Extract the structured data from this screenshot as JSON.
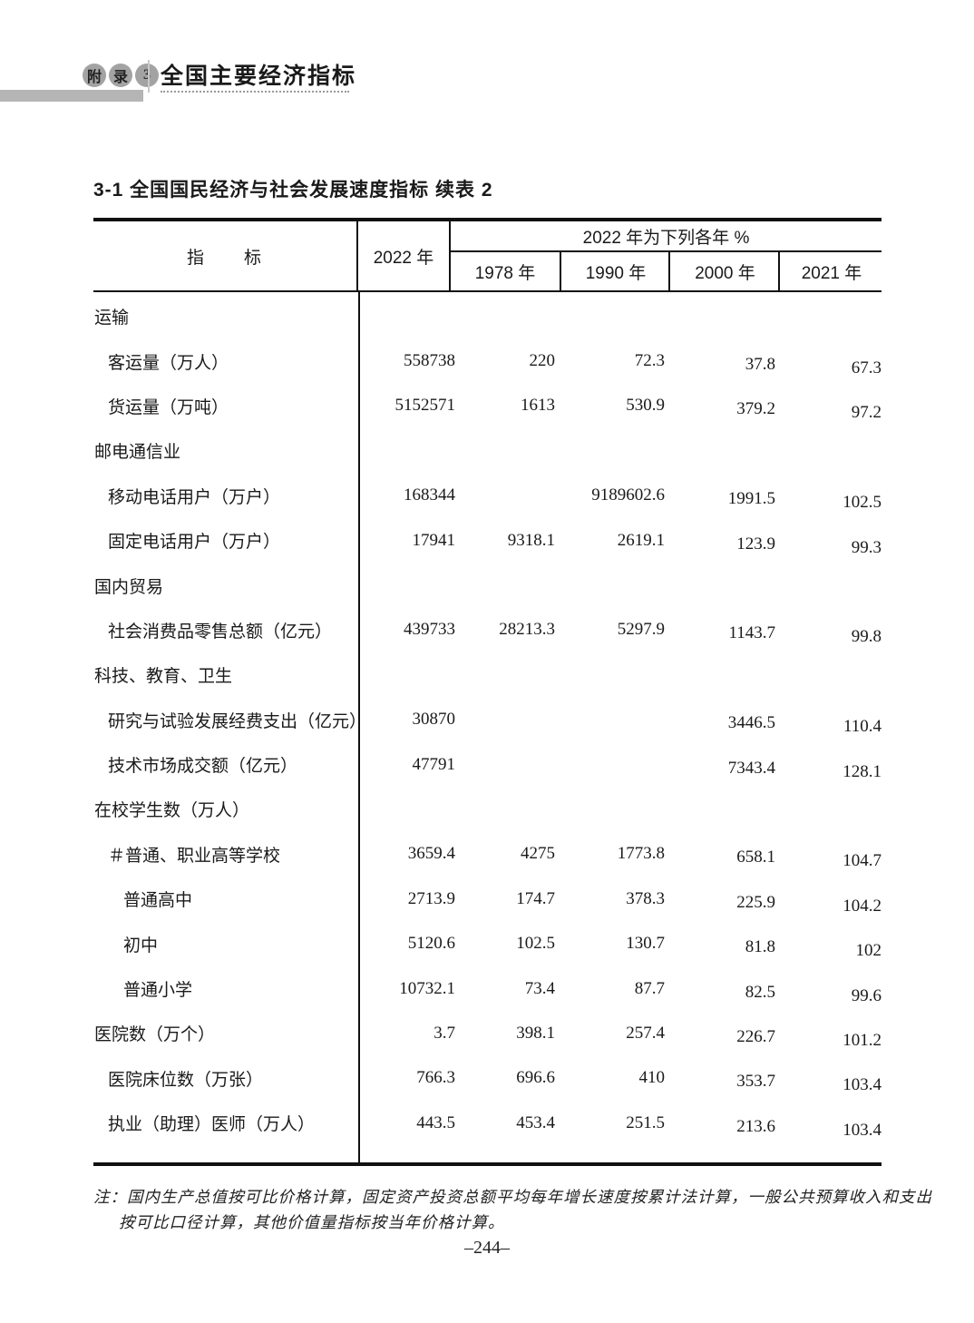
{
  "page_header": {
    "badge_chars": [
      "附",
      "录",
      "3"
    ],
    "section_title": "全国主要经济指标"
  },
  "table_title": "3-1 全国国民经济与社会发展速度指标 续表 2",
  "table": {
    "col_indicator": "指　　标",
    "col_2022": "2022 年",
    "span_header": "2022 年为下列各年 %",
    "sub_years": [
      "1978 年",
      "1990 年",
      "2000 年",
      "2021 年"
    ],
    "rows": [
      {
        "label": "运输",
        "section": true,
        "indent": 0,
        "values": [
          "",
          "",
          "",
          "",
          ""
        ]
      },
      {
        "label": "客运量（万人）",
        "section": false,
        "indent": 1,
        "values": [
          "558738",
          "220",
          "72.3",
          "37.8",
          "67.3"
        ]
      },
      {
        "label": "货运量（万吨）",
        "section": false,
        "indent": 1,
        "values": [
          "5152571",
          "1613",
          "530.9",
          "379.2",
          "97.2"
        ]
      },
      {
        "label": "邮电通信业",
        "section": true,
        "indent": 0,
        "values": [
          "",
          "",
          "",
          "",
          ""
        ]
      },
      {
        "label": "移动电话用户（万户）",
        "section": false,
        "indent": 1,
        "values": [
          "168344",
          "",
          "9189602.6",
          "1991.5",
          "102.5"
        ]
      },
      {
        "label": "固定电话用户（万户）",
        "section": false,
        "indent": 1,
        "values": [
          "17941",
          "9318.1",
          "2619.1",
          "123.9",
          "99.3"
        ]
      },
      {
        "label": "国内贸易",
        "section": true,
        "indent": 0,
        "values": [
          "",
          "",
          "",
          "",
          ""
        ]
      },
      {
        "label": "社会消费品零售总额（亿元）",
        "section": false,
        "indent": 1,
        "values": [
          "439733",
          "28213.3",
          "5297.9",
          "1143.7",
          "99.8"
        ]
      },
      {
        "label": "科技、教育、卫生",
        "section": true,
        "indent": 0,
        "values": [
          "",
          "",
          "",
          "",
          ""
        ]
      },
      {
        "label": "研究与试验发展经费支出（亿元）",
        "section": false,
        "indent": 1,
        "values": [
          "30870",
          "",
          "",
          "3446.5",
          "110.4"
        ]
      },
      {
        "label": "技术市场成交额（亿元）",
        "section": false,
        "indent": 1,
        "values": [
          "47791",
          "",
          "",
          "7343.4",
          "128.1"
        ]
      },
      {
        "label": "在校学生数（万人）",
        "section": true,
        "indent": 0,
        "values": [
          "",
          "",
          "",
          "",
          ""
        ]
      },
      {
        "label": "＃普通、职业高等学校",
        "section": false,
        "indent": 1,
        "values": [
          "3659.4",
          "4275",
          "1773.8",
          "658.1",
          "104.7"
        ]
      },
      {
        "label": "普通高中",
        "section": false,
        "indent": 2,
        "values": [
          "2713.9",
          "174.7",
          "378.3",
          "225.9",
          "104.2"
        ]
      },
      {
        "label": "初中",
        "section": false,
        "indent": 2,
        "values": [
          "5120.6",
          "102.5",
          "130.7",
          "81.8",
          "102"
        ]
      },
      {
        "label": "普通小学",
        "section": false,
        "indent": 2,
        "values": [
          "10732.1",
          "73.4",
          "87.7",
          "82.5",
          "99.6"
        ]
      },
      {
        "label": "医院数（万个）",
        "section": true,
        "indent": 0,
        "values": [
          "3.7",
          "398.1",
          "257.4",
          "226.7",
          "101.2"
        ]
      },
      {
        "label": "医院床位数（万张）",
        "section": false,
        "indent": 1,
        "values": [
          "766.3",
          "696.6",
          "410",
          "353.7",
          "103.4"
        ]
      },
      {
        "label": "执业（助理）医师（万人）",
        "section": false,
        "indent": 1,
        "values": [
          "443.5",
          "453.4",
          "251.5",
          "213.6",
          "103.4"
        ]
      }
    ]
  },
  "footnote": {
    "line1": "注：国内生产总值按可比价格计算，固定资产投资总额平均每年增长速度按累计法计算，一般公共预算收入和支出",
    "line2": "按可比口径计算，其他价值量指标按当年价格计算。"
  },
  "page_number": "–244–"
}
